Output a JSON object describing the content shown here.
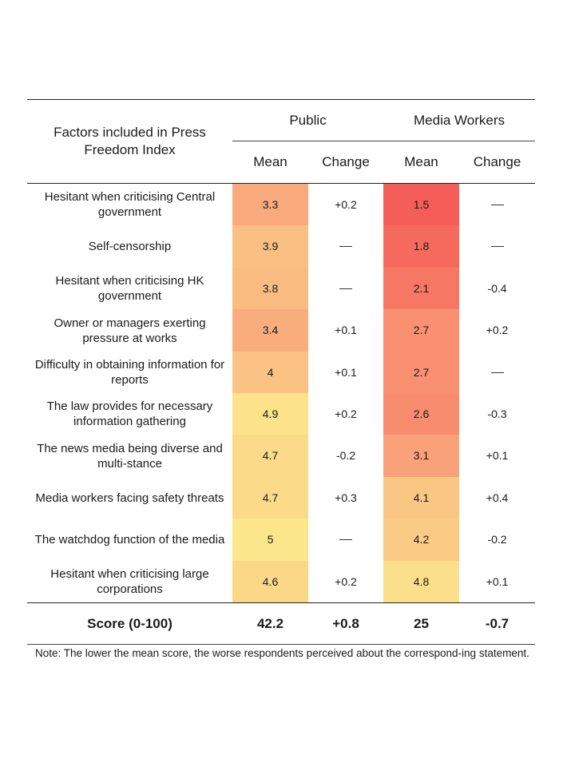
{
  "chart_data": {
    "type": "table",
    "header": {
      "factor_label": "Factors included in Press Freedom Index",
      "groups": [
        "Public",
        "Media Workers"
      ],
      "subcolumns": [
        "Mean",
        "Change",
        "Mean",
        "Change"
      ]
    },
    "rows": [
      {
        "factor": "Hesitant when criticising Central government",
        "public_mean": "3.3",
        "public_change": "+0.2",
        "media_mean": "1.5",
        "media_change": "—"
      },
      {
        "factor": "Self-censorship",
        "public_mean": "3.9",
        "public_change": "—",
        "media_mean": "1.8",
        "media_change": "—"
      },
      {
        "factor": "Hesitant when criticising HK government",
        "public_mean": "3.8",
        "public_change": "—",
        "media_mean": "2.1",
        "media_change": "-0.4"
      },
      {
        "factor": "Owner or managers exerting pressure at works",
        "public_mean": "3.4",
        "public_change": "+0.1",
        "media_mean": "2.7",
        "media_change": "+0.2"
      },
      {
        "factor": "Difficulty in obtaining information for reports",
        "public_mean": "4",
        "public_change": "+0.1",
        "media_mean": "2.7",
        "media_change": "—"
      },
      {
        "factor": "The law provides for necessary information gathering",
        "public_mean": "4.9",
        "public_change": "+0.2",
        "media_mean": "2.6",
        "media_change": "-0.3"
      },
      {
        "factor": "The news media being diverse and multi-stance",
        "public_mean": "4.7",
        "public_change": "-0.2",
        "media_mean": "3.1",
        "media_change": "+0.1"
      },
      {
        "factor": "Media workers facing safety threats",
        "public_mean": "4.7",
        "public_change": "+0.3",
        "media_mean": "4.1",
        "media_change": "+0.4"
      },
      {
        "factor": "The watchdog function of the media",
        "public_mean": "5",
        "public_change": "—",
        "media_mean": "4.2",
        "media_change": "-0.2"
      },
      {
        "factor": "Hesitant when criticising large corporations",
        "public_mean": "4.6",
        "public_change": "+0.2",
        "media_mean": "4.8",
        "media_change": "+0.1"
      }
    ],
    "score_row": {
      "label": "Score (0-100)",
      "public_mean": "42.2",
      "public_change": "+0.8",
      "media_mean": "25",
      "media_change": "-0.7"
    },
    "note": "Note: The lower the mean score, the worse respondents perceived about the correspond-ing statement.",
    "heat_colors": {
      "low": "#f55d58",
      "mid": "#f9a87c",
      "high": "#fce68c"
    }
  }
}
